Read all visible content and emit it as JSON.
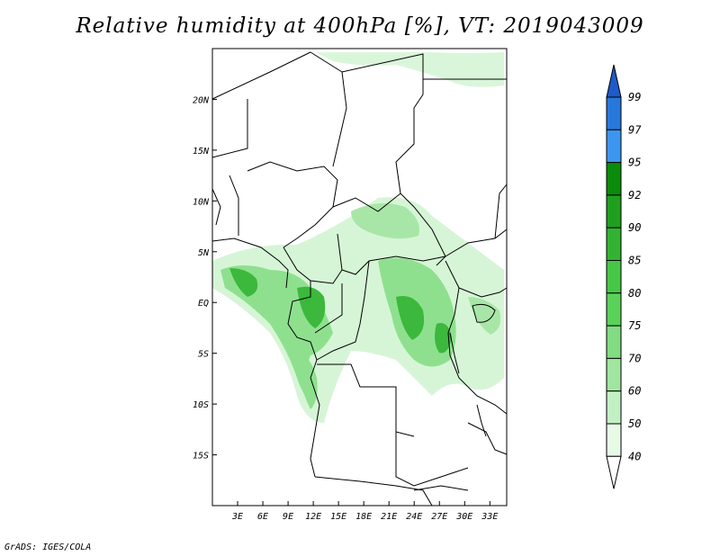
{
  "title": "Relative humidity at 400hPa [%], VT: 2019043009",
  "credit": "GrADS: IGES/COLA",
  "map": {
    "lat_labels": [
      "20N",
      "15N",
      "10N",
      "5N",
      "EQ",
      "5S",
      "10S",
      "15S"
    ],
    "lat_values": [
      20,
      15,
      10,
      5,
      0,
      -5,
      -10,
      -15
    ],
    "lon_labels": [
      "3E",
      "6E",
      "9E",
      "12E",
      "15E",
      "18E",
      "21E",
      "24E",
      "27E",
      "30E",
      "33E"
    ],
    "lon_values": [
      3,
      6,
      9,
      12,
      15,
      18,
      21,
      24,
      27,
      30,
      33
    ],
    "lon_range": [
      0,
      35
    ],
    "lat_range": [
      -20,
      25
    ]
  },
  "colorbar": {
    "levels": [
      "99",
      "97",
      "95",
      "92",
      "90",
      "85",
      "80",
      "75",
      "70",
      "60",
      "50",
      "40"
    ],
    "colors": [
      "#1e5ac8",
      "#2878dc",
      "#3c96f0",
      "#0a8c0a",
      "#1ea01e",
      "#32b432",
      "#46c846",
      "#5ad25a",
      "#82dc82",
      "#a0e6a0",
      "#c3f0c3",
      "#e6fae6"
    ]
  },
  "colors": {
    "coast": "#000000",
    "green_light": "#d6f5d6",
    "green_mid": "#8ee08e",
    "green_dark": "#3cb83c"
  }
}
